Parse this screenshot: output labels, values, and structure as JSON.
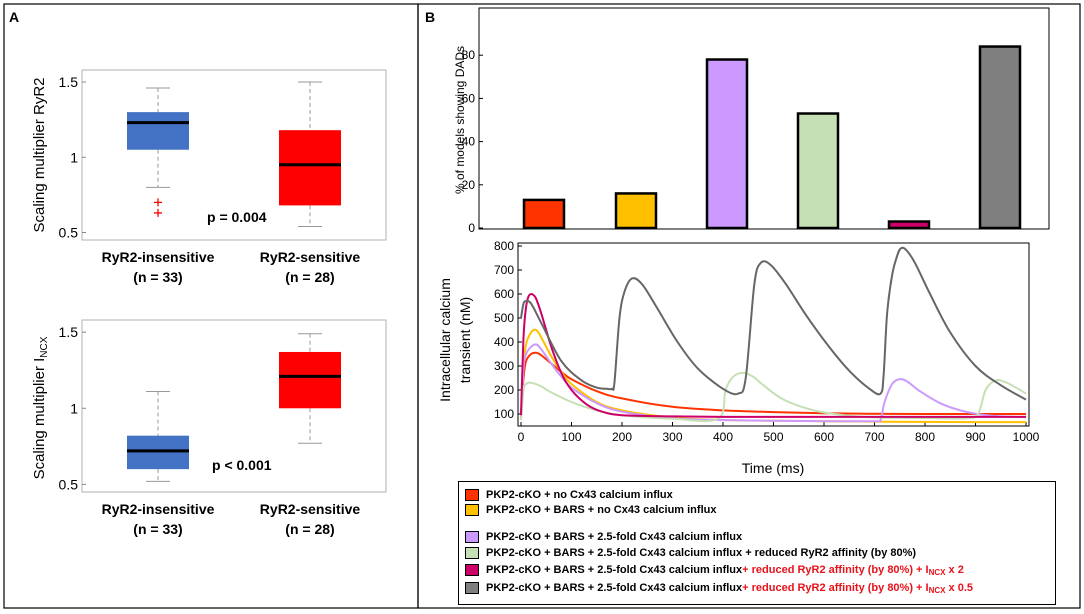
{
  "panel_labels": {
    "a": "A",
    "b": "B"
  },
  "chart_data": [
    {
      "type": "boxplot",
      "id": "a_top",
      "ylabel": "Scaling multiplier RyR2",
      "ylim": [
        0.45,
        1.58
      ],
      "yticks": [
        "0.5",
        "1",
        "1.5"
      ],
      "groups": [
        {
          "label": "RyR2-insensitive",
          "n": "(n = 33)",
          "color": "#4472c4",
          "min": 0.8,
          "q1": 1.05,
          "median": 1.23,
          "q3": 1.3,
          "max": 1.46,
          "outliers": [
            0.7,
            0.63
          ]
        },
        {
          "label": "RyR2-sensitive",
          "n": "(n = 28)",
          "color": "#ff0000",
          "min": 0.54,
          "q1": 0.68,
          "median": 0.95,
          "q3": 1.18,
          "max": 1.5,
          "outliers": []
        }
      ],
      "annotation": "p = 0.004"
    },
    {
      "type": "boxplot",
      "id": "a_bottom",
      "ylabel_main": "Scaling multiplier I",
      "ylabel_sub": "NCX",
      "ylim": [
        0.45,
        1.58
      ],
      "yticks": [
        "0.5",
        "1",
        "1.5"
      ],
      "groups": [
        {
          "label": "RyR2-insensitive",
          "n": "(n = 33)",
          "color": "#4472c4",
          "min": 0.52,
          "q1": 0.6,
          "median": 0.72,
          "q3": 0.82,
          "max": 1.11,
          "outliers": []
        },
        {
          "label": "RyR2-sensitive",
          "n": "(n = 28)",
          "color": "#ff0000",
          "min": 0.77,
          "q1": 1.0,
          "median": 1.21,
          "q3": 1.37,
          "max": 1.49,
          "outliers": []
        }
      ],
      "annotation": "p < 0.001"
    },
    {
      "type": "bar",
      "id": "b_bar",
      "ylabel": "% of models showing DADs",
      "ylim": [
        0,
        100
      ],
      "yticks": [
        "0",
        "20",
        "40",
        "60",
        "80"
      ],
      "values": [
        13,
        16,
        78,
        53,
        3,
        84
      ],
      "colors": [
        "#ff3300",
        "#ffc000",
        "#cc99ff",
        "#c5e0b4",
        "#cc0066",
        "#7f7f7f"
      ]
    },
    {
      "type": "line",
      "id": "b_line",
      "ylabel": [
        "Intracellular calcium",
        "transient (nM)"
      ],
      "xlabel": "Time (ms)",
      "xlim": [
        0,
        1000
      ],
      "ylim": [
        50,
        800
      ],
      "xticks": [
        "0",
        "100",
        "200",
        "300",
        "400",
        "500",
        "600",
        "700",
        "800",
        "900",
        "1000"
      ],
      "yticks": [
        "100",
        "200",
        "300",
        "400",
        "500",
        "600",
        "700",
        "800"
      ],
      "series": [
        {
          "name": "no_cx43",
          "color": "#ff3300",
          "t": [
            0,
            5,
            10,
            20,
            30,
            40,
            60,
            80,
            100,
            150,
            200,
            300,
            400,
            500,
            600,
            700,
            800,
            900,
            1000
          ],
          "y": [
            95,
            250,
            320,
            350,
            355,
            345,
            310,
            275,
            245,
            195,
            165,
            130,
            115,
            108,
            103,
            101,
            100,
            100,
            100
          ]
        },
        {
          "name": "bars",
          "color": "#ffc000",
          "t": [
            0,
            5,
            10,
            20,
            30,
            40,
            60,
            80,
            100,
            150,
            200,
            300,
            400,
            500,
            600,
            700,
            800,
            900,
            1000
          ],
          "y": [
            90,
            300,
            390,
            440,
            450,
            420,
            340,
            275,
            225,
            150,
            115,
            85,
            75,
            72,
            70,
            68,
            67,
            66,
            66
          ]
        },
        {
          "name": "bars_2_5",
          "color": "#cc99ff",
          "t": [
            0,
            5,
            10,
            20,
            30,
            40,
            60,
            80,
            100,
            150,
            200,
            300,
            400,
            500,
            600,
            700,
            712,
            720,
            735,
            750,
            765,
            790,
            830,
            870,
            910,
            950,
            1000
          ],
          "y": [
            80,
            290,
            350,
            380,
            390,
            370,
            310,
            255,
            210,
            145,
            110,
            82,
            75,
            72,
            70,
            70,
            75,
            150,
            225,
            245,
            235,
            195,
            145,
            115,
            98,
            90,
            87
          ]
        },
        {
          "name": "bars_2_5_ryr",
          "color": "#c5e0b4",
          "t": [
            0,
            5,
            10,
            20,
            40,
            60,
            100,
            150,
            200,
            300,
            390,
            405,
            420,
            440,
            460,
            480,
            520,
            580,
            640,
            700,
            760,
            820,
            880,
            905,
            920,
            940,
            960,
            980,
            1000
          ],
          "y": [
            75,
            200,
            225,
            230,
            215,
            190,
            150,
            115,
            95,
            80,
            80,
            200,
            255,
            272,
            255,
            220,
            160,
            115,
            95,
            86,
            84,
            83,
            82,
            100,
            200,
            240,
            232,
            210,
            185
          ]
        },
        {
          "name": "bars_2_5_ryr_ncx2",
          "color": "#cc0066",
          "t": [
            0,
            5,
            10,
            15,
            20,
            25,
            30,
            40,
            60,
            80,
            100,
            130,
            160,
            200,
            300,
            400,
            500,
            600,
            700,
            800,
            900,
            1000
          ],
          "y": [
            95,
            420,
            545,
            590,
            600,
            595,
            580,
            520,
            380,
            270,
            200,
            140,
            110,
            95,
            90,
            88,
            88,
            88,
            88,
            88,
            88,
            88
          ]
        },
        {
          "name": "bars_2_5_ryr_ncx05",
          "color": "#666666",
          "t": [
            0,
            5,
            10,
            20,
            40,
            80,
            120,
            150,
            170,
            180,
            185,
            195,
            205,
            220,
            240,
            270,
            310,
            350,
            400,
            430,
            445,
            462,
            475,
            495,
            525,
            565,
            610,
            650,
            690,
            712,
            718,
            725,
            735,
            745,
            752,
            762,
            780,
            810,
            850,
            900,
            950,
            1000
          ],
          "y": [
            500,
            560,
            570,
            560,
            480,
            320,
            240,
            210,
            205,
            205,
            230,
            500,
            610,
            665,
            640,
            540,
            400,
            290,
            205,
            185,
            250,
            640,
            730,
            720,
            640,
            510,
            380,
            280,
            205,
            185,
            260,
            520,
            680,
            760,
            790,
            785,
            730,
            600,
            440,
            300,
            220,
            160
          ]
        }
      ]
    }
  ],
  "legend": [
    {
      "color": "#ff3300",
      "text": "PKP2-cKO + no Cx43 calcium influx"
    },
    {
      "color": "#ffc000",
      "text": "PKP2-cKO + BARS + no Cx43 calcium influx"
    },
    {
      "color": "#cc99ff",
      "text": "PKP2-cKO + BARS + 2.5-fold Cx43 calcium influx"
    },
    {
      "color": "#c5e0b4",
      "text": "PKP2-cKO + BARS + 2.5-fold Cx43 calcium influx + reduced RyR2 affinity (by 80%)"
    },
    {
      "color": "#cc0066",
      "text": "PKP2-cKO + BARS + 2.5-fold Cx43 calcium influx",
      "red_text": " + reduced RyR2 affinity (by 80%) + I",
      "red_sub": "NCX",
      "red_tail": " x 2"
    },
    {
      "color": "#7f7f7f",
      "text": "PKP2-cKO + BARS + 2.5-fold Cx43 calcium influx",
      "red_text": " + reduced RyR2 affinity (by 80%) + I",
      "red_sub": "NCX",
      "red_tail": " x 0.5"
    }
  ]
}
